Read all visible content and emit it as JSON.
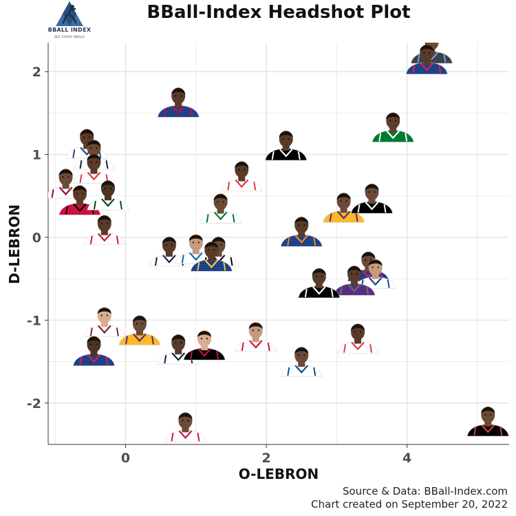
{
  "logo": {
    "name": "BBALL INDEX",
    "tagline": "SEE EVERY ANGLE"
  },
  "caption": {
    "source": "Source & Data: BBall-Index.com",
    "created": "Chart created on September 20, 2022"
  },
  "chart_data": {
    "type": "scatter",
    "title": "BBall-Index Headshot Plot",
    "xlabel": "O-LEBRON",
    "ylabel": "D-LEBRON",
    "xlim": [
      -1.1,
      5.45
    ],
    "ylim": [
      -2.5,
      2.35
    ],
    "xticks": [
      0,
      2,
      4
    ],
    "yticks": [
      -2,
      -1,
      0,
      1,
      2
    ],
    "grid": true,
    "marker": "player headshot",
    "colors": {
      "background": "#ffffff",
      "grid": "#e6e6e6",
      "axis_text": "#4d4d4d"
    },
    "points": [
      {
        "x": 4.35,
        "y": 2.2,
        "jersey": "#3a4150",
        "trim": "#7aa0c8",
        "skin": "#6b4a36"
      },
      {
        "x": 4.28,
        "y": 2.07,
        "jersey": "#1d428a",
        "trim": "#ed174c",
        "skin": "#5a3b2a"
      },
      {
        "x": 0.75,
        "y": 1.55,
        "jersey": "#1d428a",
        "trim": "#c8102e",
        "skin": "#5a3b2a"
      },
      {
        "x": 3.8,
        "y": 1.25,
        "jersey": "#007a33",
        "trim": "#ffffff",
        "skin": "#5f3e2b"
      },
      {
        "x": 2.28,
        "y": 1.03,
        "jersey": "#000000",
        "trim": "#ffffff",
        "skin": "#5a3b2a"
      },
      {
        "x": -0.55,
        "y": 1.05,
        "jersey": "#ffffff",
        "trim": "#1d428a",
        "skin": "#5a3b2a"
      },
      {
        "x": -0.45,
        "y": 0.92,
        "jersey": "#ffffff",
        "trim": "#0e2240",
        "skin": "#6b4a36"
      },
      {
        "x": -0.45,
        "y": 0.75,
        "jersey": "#ffffff",
        "trim": "#e03a3e",
        "skin": "#5a3b2a"
      },
      {
        "x": -0.85,
        "y": 0.57,
        "jersey": "#ffffff",
        "trim": "#98002e",
        "skin": "#6b4a36"
      },
      {
        "x": -0.65,
        "y": 0.37,
        "jersey": "#ce1141",
        "trim": "#000000",
        "skin": "#5a3b2a"
      },
      {
        "x": -0.25,
        "y": 0.43,
        "jersey": "#ffffff",
        "trim": "#00471b",
        "skin": "#4f3325"
      },
      {
        "x": 1.65,
        "y": 0.66,
        "jersey": "#ffffff",
        "trim": "#e03a3e",
        "skin": "#5a3b2a"
      },
      {
        "x": 1.35,
        "y": 0.27,
        "jersey": "#ffffff",
        "trim": "#007a33",
        "skin": "#6b4a36"
      },
      {
        "x": 3.1,
        "y": 0.28,
        "jersey": "#fdb927",
        "trim": "#552583",
        "skin": "#6b4a36"
      },
      {
        "x": 3.5,
        "y": 0.39,
        "jersey": "#000000",
        "trim": "#ffffff",
        "skin": "#6b4a36"
      },
      {
        "x": 2.5,
        "y": -0.01,
        "jersey": "#1d428a",
        "trim": "#f58426",
        "skin": "#5a3b2a"
      },
      {
        "x": -0.3,
        "y": 0.01,
        "jersey": "#ffffff",
        "trim": "#ce1141",
        "skin": "#5a3b2a"
      },
      {
        "x": 0.62,
        "y": -0.25,
        "jersey": "#ffffff",
        "trim": "#0e2240",
        "skin": "#5a3b2a"
      },
      {
        "x": 1.0,
        "y": -0.22,
        "jersey": "#ffffff",
        "trim": "#006bb6",
        "skin": "#c79a7d"
      },
      {
        "x": 1.32,
        "y": -0.25,
        "jersey": "#ffffff",
        "trim": "#000000",
        "skin": "#6b4a36"
      },
      {
        "x": 1.22,
        "y": -0.31,
        "jersey": "#1d428a",
        "trim": "#ffc72c",
        "skin": "#5a3b2a"
      },
      {
        "x": 3.45,
        "y": -0.43,
        "jersey": "#1d428a",
        "trim": "#ed174c",
        "skin": "#6b4a36"
      },
      {
        "x": 3.55,
        "y": -0.52,
        "jersey": "#ffffff",
        "trim": "#1d428a",
        "skin": "#c79a7d"
      },
      {
        "x": 3.25,
        "y": -0.6,
        "jersey": "#5a2d81",
        "trim": "#63727a",
        "skin": "#5a3b2a"
      },
      {
        "x": 2.75,
        "y": -0.63,
        "jersey": "#000000",
        "trim": "#ffffff",
        "skin": "#5a3b2a"
      },
      {
        "x": -0.3,
        "y": -1.1,
        "jersey": "#ffffff",
        "trim": "#6f263d",
        "skin": "#d9ad90"
      },
      {
        "x": 0.2,
        "y": -1.2,
        "jersey": "#fdb927",
        "trim": "#552583",
        "skin": "#6b4a36"
      },
      {
        "x": -0.45,
        "y": -1.45,
        "jersey": "#1d428a",
        "trim": "#ed174c",
        "skin": "#4f3325"
      },
      {
        "x": 0.75,
        "y": -1.43,
        "jersey": "#ffffff",
        "trim": "#0c2340",
        "skin": "#5a3b2a"
      },
      {
        "x": 1.12,
        "y": -1.38,
        "jersey": "#000000",
        "trim": "#ce1141",
        "skin": "#d9ad90"
      },
      {
        "x": 1.85,
        "y": -1.28,
        "jersey": "#ffffff",
        "trim": "#ce1141",
        "skin": "#c79a7d"
      },
      {
        "x": 2.5,
        "y": -1.58,
        "jersey": "#ffffff",
        "trim": "#00538c",
        "skin": "#6b4a36"
      },
      {
        "x": 3.3,
        "y": -1.3,
        "jersey": "#ffffff",
        "trim": "#e03a3e",
        "skin": "#5a3b2a"
      },
      {
        "x": 0.85,
        "y": -2.37,
        "jersey": "#ffffff",
        "trim": "#ce1141",
        "skin": "#6b4a36"
      },
      {
        "x": 5.15,
        "y": -2.3,
        "jersey": "#000000",
        "trim": "#e03a3e",
        "skin": "#6b4a36"
      }
    ]
  }
}
